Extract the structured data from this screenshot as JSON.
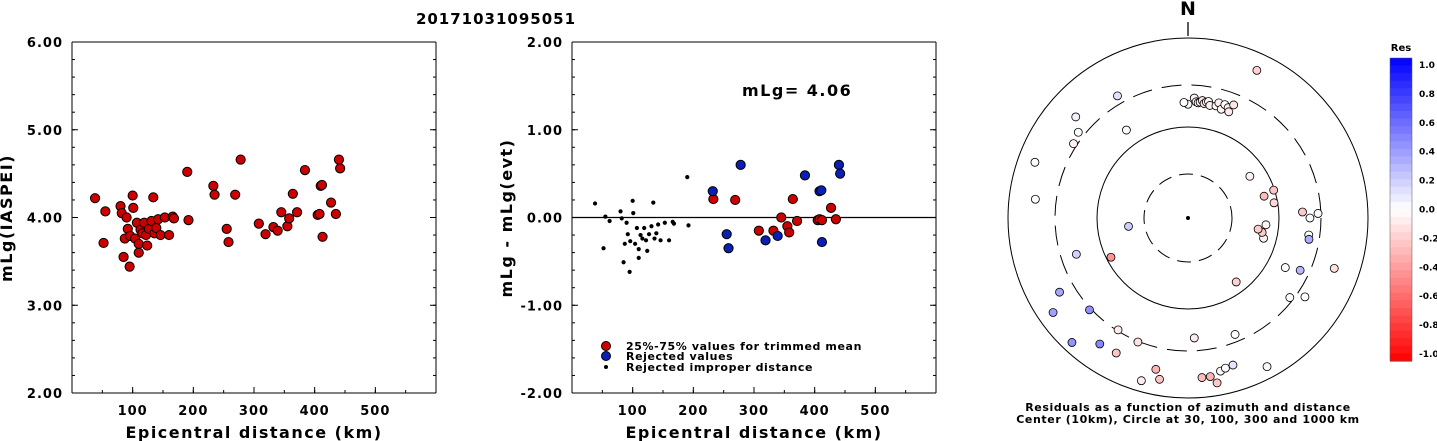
{
  "title": "20171031095051",
  "colors": {
    "accepted": "#cc0000",
    "rejected": "#0a1fb4",
    "improper": "#000000"
  },
  "chart_data": [
    {
      "type": "scatter",
      "xlabel": "Epicentral distance (km)",
      "ylabel": "mLg(IASPEI)",
      "xlim": [
        0,
        600
      ],
      "ylim": [
        2.0,
        6.0
      ],
      "xticks": [
        "100",
        "200",
        "300",
        "400",
        "500"
      ],
      "yticks": [
        "2.00",
        "3.00",
        "4.00",
        "5.00",
        "6.00"
      ],
      "points": [
        [
          38,
          4.22
        ],
        [
          52,
          3.71
        ],
        [
          55,
          4.07
        ],
        [
          80,
          4.13
        ],
        [
          82,
          4.05
        ],
        [
          85,
          3.55
        ],
        [
          87,
          3.76
        ],
        [
          90,
          4.0
        ],
        [
          92,
          3.87
        ],
        [
          95,
          3.44
        ],
        [
          96,
          3.79
        ],
        [
          100,
          4.25
        ],
        [
          101,
          4.11
        ],
        [
          104,
          3.76
        ],
        [
          107,
          3.94
        ],
        [
          110,
          3.6
        ],
        [
          110,
          3.7
        ],
        [
          113,
          3.86
        ],
        [
          116,
          3.82
        ],
        [
          119,
          3.94
        ],
        [
          122,
          3.8
        ],
        [
          124,
          3.68
        ],
        [
          127,
          3.87
        ],
        [
          131,
          3.96
        ],
        [
          134,
          4.23
        ],
        [
          136,
          3.82
        ],
        [
          139,
          3.88
        ],
        [
          142,
          3.98
        ],
        [
          146,
          3.8
        ],
        [
          153,
          4.0
        ],
        [
          160,
          3.8
        ],
        [
          166,
          4.01
        ],
        [
          168,
          3.99
        ],
        [
          190,
          4.52
        ],
        [
          192,
          3.97
        ],
        [
          233,
          4.36
        ],
        [
          235,
          4.26
        ],
        [
          255,
          3.87
        ],
        [
          258,
          3.72
        ],
        [
          269,
          4.26
        ],
        [
          278,
          4.66
        ],
        [
          308,
          3.93
        ],
        [
          319,
          3.81
        ],
        [
          332,
          3.89
        ],
        [
          339,
          3.85
        ],
        [
          345,
          4.06
        ],
        [
          355,
          3.9
        ],
        [
          358,
          3.99
        ],
        [
          364,
          4.27
        ],
        [
          371,
          4.06
        ],
        [
          384,
          4.54
        ],
        [
          405,
          4.03
        ],
        [
          408,
          4.04
        ],
        [
          410,
          4.36
        ],
        [
          412,
          4.37
        ],
        [
          413,
          3.78
        ],
        [
          427,
          4.17
        ],
        [
          435,
          4.04
        ],
        [
          440,
          4.66
        ],
        [
          442,
          4.56
        ]
      ]
    },
    {
      "type": "scatter",
      "xlabel": "Epicentral distance (km)",
      "ylabel": "mLg - mLg(evt)",
      "xlim": [
        0,
        600
      ],
      "ylim": [
        -2.0,
        2.0
      ],
      "xticks": [
        "100",
        "200",
        "300",
        "400",
        "500"
      ],
      "yticks": [
        "-2.00",
        "-1.00",
        "0.00",
        "1.00",
        "2.00"
      ],
      "annotation": "mLg= 4.06",
      "legend": [
        {
          "label": "25%-75% values for trimmed mean",
          "kind": "accepted"
        },
        {
          "label": "Rejected values",
          "kind": "rejected"
        },
        {
          "label": "Rejected improper distance",
          "kind": "improper"
        }
      ],
      "accepted": [
        [
          233,
          0.21
        ],
        [
          269,
          0.2
        ],
        [
          308,
          -0.15
        ],
        [
          332,
          -0.15
        ],
        [
          345,
          0.0
        ],
        [
          355,
          -0.1
        ],
        [
          358,
          -0.17
        ],
        [
          364,
          0.21
        ],
        [
          371,
          -0.04
        ],
        [
          405,
          -0.03
        ],
        [
          408,
          -0.02
        ],
        [
          412,
          -0.03
        ],
        [
          427,
          0.11
        ],
        [
          435,
          -0.02
        ]
      ],
      "rejected": [
        [
          232,
          0.3
        ],
        [
          255,
          -0.19
        ],
        [
          258,
          -0.35
        ],
        [
          278,
          0.6
        ],
        [
          319,
          -0.26
        ],
        [
          339,
          -0.21
        ],
        [
          384,
          0.48
        ],
        [
          408,
          0.3
        ],
        [
          411,
          0.31
        ],
        [
          412,
          -0.28
        ],
        [
          440,
          0.6
        ],
        [
          442,
          0.5
        ]
      ],
      "improper": [
        [
          38,
          0.16
        ],
        [
          52,
          -0.35
        ],
        [
          55,
          0.01
        ],
        [
          62,
          -0.04
        ],
        [
          80,
          0.07
        ],
        [
          82,
          -0.01
        ],
        [
          85,
          -0.51
        ],
        [
          87,
          -0.3
        ],
        [
          90,
          -0.06
        ],
        [
          92,
          -0.19
        ],
        [
          95,
          -0.62
        ],
        [
          96,
          -0.27
        ],
        [
          100,
          0.19
        ],
        [
          101,
          0.05
        ],
        [
          104,
          -0.3
        ],
        [
          107,
          -0.12
        ],
        [
          110,
          -0.46
        ],
        [
          110,
          -0.36
        ],
        [
          113,
          -0.2
        ],
        [
          116,
          -0.24
        ],
        [
          119,
          -0.12
        ],
        [
          122,
          -0.26
        ],
        [
          124,
          -0.38
        ],
        [
          127,
          -0.19
        ],
        [
          131,
          -0.1
        ],
        [
          134,
          0.17
        ],
        [
          136,
          -0.24
        ],
        [
          139,
          -0.18
        ],
        [
          142,
          -0.08
        ],
        [
          146,
          -0.26
        ],
        [
          153,
          -0.06
        ],
        [
          160,
          -0.26
        ],
        [
          166,
          -0.05
        ],
        [
          168,
          -0.07
        ],
        [
          190,
          0.46
        ],
        [
          192,
          -0.09
        ]
      ]
    },
    {
      "type": "polar",
      "north_label": "N",
      "caption_line1": "Residuals as a function of azimuth and distance",
      "caption_line2": "Center (10km), Circle at 30, 100, 300 and 1000 km",
      "colorbar_title": "Res",
      "colorbar_ticks": [
        "1.0",
        "0.8",
        "0.6",
        "0.4",
        "0.2",
        "0.0",
        "-0.2",
        "-0.4",
        "-0.6",
        "-0.8",
        "-1.0"
      ],
      "points": [
        [
          3,
          1.32,
          -0.05
        ],
        [
          4,
          1.28,
          0.0
        ],
        [
          5,
          1.27,
          -0.1
        ],
        [
          6,
          1.28,
          0.05
        ],
        [
          7,
          1.3,
          -0.1
        ],
        [
          8,
          1.27,
          -0.12
        ],
        [
          9,
          1.29,
          -0.05
        ],
        [
          0,
          1.25,
          -0.02
        ],
        [
          -2,
          1.27,
          0.0
        ],
        [
          10,
          1.3,
          0.03
        ],
        [
          11,
          1.26,
          -0.06
        ],
        [
          14,
          1.27,
          -0.02
        ],
        [
          15,
          1.31,
          -0.06
        ],
        [
          17,
          1.25,
          -0.04
        ],
        [
          18,
          1.31,
          0.0
        ],
        [
          20,
          1.29,
          -0.06
        ],
        [
          21,
          1.25,
          -0.08
        ],
        [
          22,
          1.34,
          -0.1
        ],
        [
          25,
          1.79,
          -0.18
        ],
        [
          -30,
          1.55,
          0.12
        ],
        [
          -35,
          1.18,
          -0.02
        ],
        [
          -48,
          1.66,
          0.05
        ],
        [
          -52,
          1.53,
          0.0
        ],
        [
          -57,
          1.5,
          -0.06
        ],
        [
          -70,
          1.79,
          0.0
        ],
        [
          -98,
          0.66,
          0.2
        ],
        [
          -83,
          1.69,
          0.0
        ],
        [
          -108,
          1.29,
          0.18
        ],
        [
          -117,
          0.95,
          -0.42
        ],
        [
          -120,
          1.63,
          0.35
        ],
        [
          -125,
          1.81,
          0.37
        ],
        [
          -133,
          1.48,
          0.44
        ],
        [
          -137,
          1.87,
          0.42
        ],
        [
          -145,
          1.69,
          0.47
        ],
        [
          -148,
          1.45,
          -0.08
        ],
        [
          -152,
          1.68,
          -0.23
        ],
        [
          -158,
          1.47,
          -0.12
        ],
        [
          -164,
          1.86,
          -0.07
        ],
        [
          -168,
          1.7,
          -0.3
        ],
        [
          -170,
          1.8,
          -0.23
        ],
        [
          177,
          1.32,
          -0.08
        ],
        [
          175,
          1.76,
          -0.26
        ],
        [
          172,
          1.76,
          -0.3
        ],
        [
          170,
          1.84,
          -0.22
        ],
        [
          168,
          1.72,
          -0.04
        ],
        [
          166,
          1.7,
          0.0
        ],
        [
          163,
          1.69,
          0.1
        ],
        [
          158,
          1.38,
          0.0
        ],
        [
          152,
          1.85,
          0.03
        ],
        [
          143,
          0.88,
          -0.18
        ],
        [
          128,
          1.42,
          0.0
        ],
        [
          124,
          1.55,
          0.0
        ],
        [
          115,
          1.36,
          0.28
        ],
        [
          117,
          1.2,
          0.0
        ],
        [
          109,
          1.7,
          -0.12
        ],
        [
          105,
          0.86,
          -0.05
        ],
        [
          101,
          0.83,
          -0.21
        ],
        [
          99,
          0.78,
          -0.2
        ],
        [
          95,
          0.86,
          -0.04
        ],
        [
          98,
          1.34,
          0.0
        ],
        [
          87,
          1.26,
          -0.21
        ],
        [
          88,
          1.43,
          0.01
        ],
        [
          90,
          1.34,
          0.02
        ],
        [
          74,
          0.87,
          -0.27
        ],
        [
          72,
          0.99,
          -0.23
        ],
        [
          56,
          0.82,
          -0.05
        ],
        [
          80,
          0.96,
          -0.15
        ],
        [
          100,
          1.35,
          0.32
        ]
      ]
    }
  ]
}
